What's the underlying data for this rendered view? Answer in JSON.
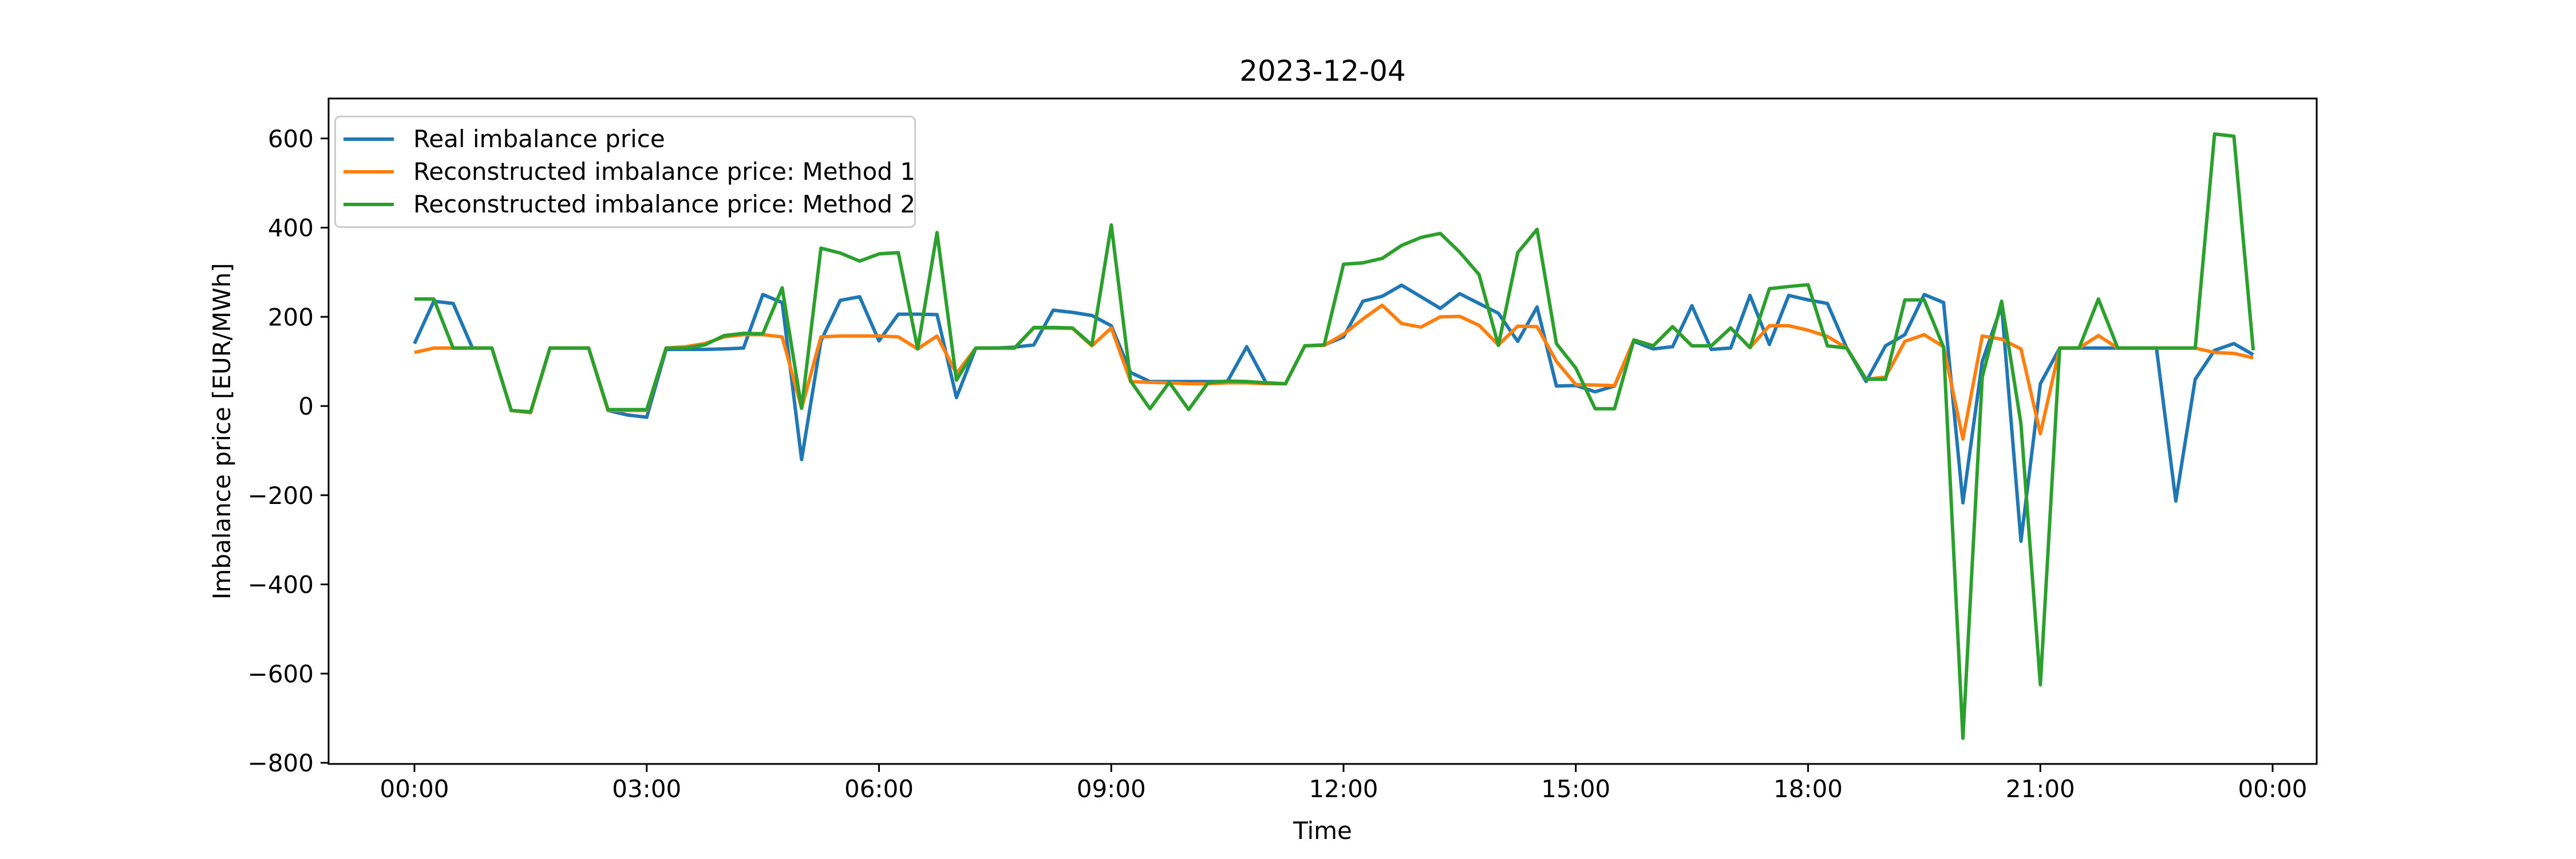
{
  "figure": {
    "title": "2023-12-04"
  },
  "chart_data": {
    "type": "line",
    "title": "2023-12-04",
    "xlabel": "Time",
    "ylabel": "Imbalance price [EUR/MWh]",
    "grid": false,
    "legend_position": "upper left",
    "x_start": "00:00",
    "x_step_minutes": 15,
    "n_points": 96,
    "x_tick_hours": [
      0,
      3,
      6,
      9,
      12,
      15,
      18,
      21,
      24
    ],
    "x_tick_labels": [
      "00:00",
      "03:00",
      "06:00",
      "09:00",
      "12:00",
      "15:00",
      "18:00",
      "21:00",
      "00:00"
    ],
    "y_ticks": [
      -800,
      -600,
      -400,
      -200,
      0,
      200,
      400,
      600
    ],
    "y_tick_labels": [
      "−800",
      "−600",
      "−400",
      "−200",
      "0",
      "200",
      "400",
      "600"
    ],
    "ylim": [
      -802,
      689
    ],
    "axis_color": "#000000",
    "series": [
      {
        "name": "Real imbalance price",
        "color": "#1f77b4",
        "values": [
          140,
          235,
          230,
          130,
          130,
          -10,
          -15,
          130,
          130,
          130,
          -10,
          -20,
          -25,
          127,
          127,
          127,
          128,
          130,
          250,
          232,
          -120,
          146,
          237,
          245,
          146,
          206,
          206,
          205,
          19,
          130,
          130,
          132,
          137,
          215,
          210,
          203,
          180,
          75,
          55,
          55,
          55,
          55,
          55,
          133,
          52,
          50,
          135,
          137,
          155,
          235,
          246,
          271,
          245,
          219,
          252,
          230,
          208,
          145,
          222,
          45,
          46,
          32,
          45,
          145,
          128,
          133,
          225,
          127,
          130,
          248,
          138,
          248,
          238,
          230,
          130,
          55,
          135,
          160,
          250,
          232,
          -217,
          100,
          225,
          -303,
          50,
          130,
          130,
          130,
          130,
          130,
          130,
          -213,
          60,
          125,
          140,
          115
        ]
      },
      {
        "name": "Reconstructed imbalance price: Method 1",
        "color": "#ff7f0e",
        "values": [
          120,
          130,
          130,
          130,
          130,
          -10,
          -15,
          130,
          130,
          130,
          -10,
          -10,
          -10,
          130,
          133,
          140,
          155,
          160,
          160,
          155,
          -5,
          155,
          157,
          157,
          157,
          155,
          128,
          157,
          73,
          130,
          130,
          130,
          175,
          175,
          174,
          135,
          175,
          55,
          53,
          52,
          50,
          50,
          52,
          52,
          50,
          50,
          135,
          136,
          161,
          195,
          226,
          185,
          177,
          200,
          201,
          181,
          137,
          179,
          178,
          100,
          48,
          47,
          46,
          148,
          135,
          178,
          135,
          135,
          175,
          131,
          180,
          180,
          170,
          156,
          130,
          60,
          65,
          145,
          160,
          133,
          -74,
          157,
          150,
          128,
          -62,
          130,
          130,
          158,
          130,
          130,
          130,
          130,
          130,
          120,
          118,
          108
        ]
      },
      {
        "name": "Reconstructed imbalance price: Method 2",
        "color": "#2ca02c",
        "values": [
          240,
          240,
          130,
          130,
          130,
          -10,
          -13,
          130,
          130,
          130,
          -8,
          -8,
          -8,
          130,
          130,
          137,
          158,
          163,
          162,
          265,
          -5,
          354,
          343,
          325,
          341,
          344,
          128,
          389,
          58,
          130,
          130,
          130,
          176,
          176,
          175,
          137,
          406,
          56,
          -6,
          53,
          -8,
          52,
          56,
          55,
          52,
          50,
          135,
          137,
          318,
          321,
          331,
          360,
          378,
          387,
          345,
          295,
          136,
          344,
          396,
          140,
          85,
          -6,
          -6,
          148,
          135,
          178,
          135,
          135,
          175,
          131,
          263,
          268,
          272,
          135,
          130,
          60,
          60,
          238,
          238,
          132,
          -745,
          65,
          235,
          -40,
          -625,
          130,
          130,
          240,
          130,
          130,
          130,
          130,
          130,
          610,
          605,
          125
        ]
      }
    ]
  }
}
